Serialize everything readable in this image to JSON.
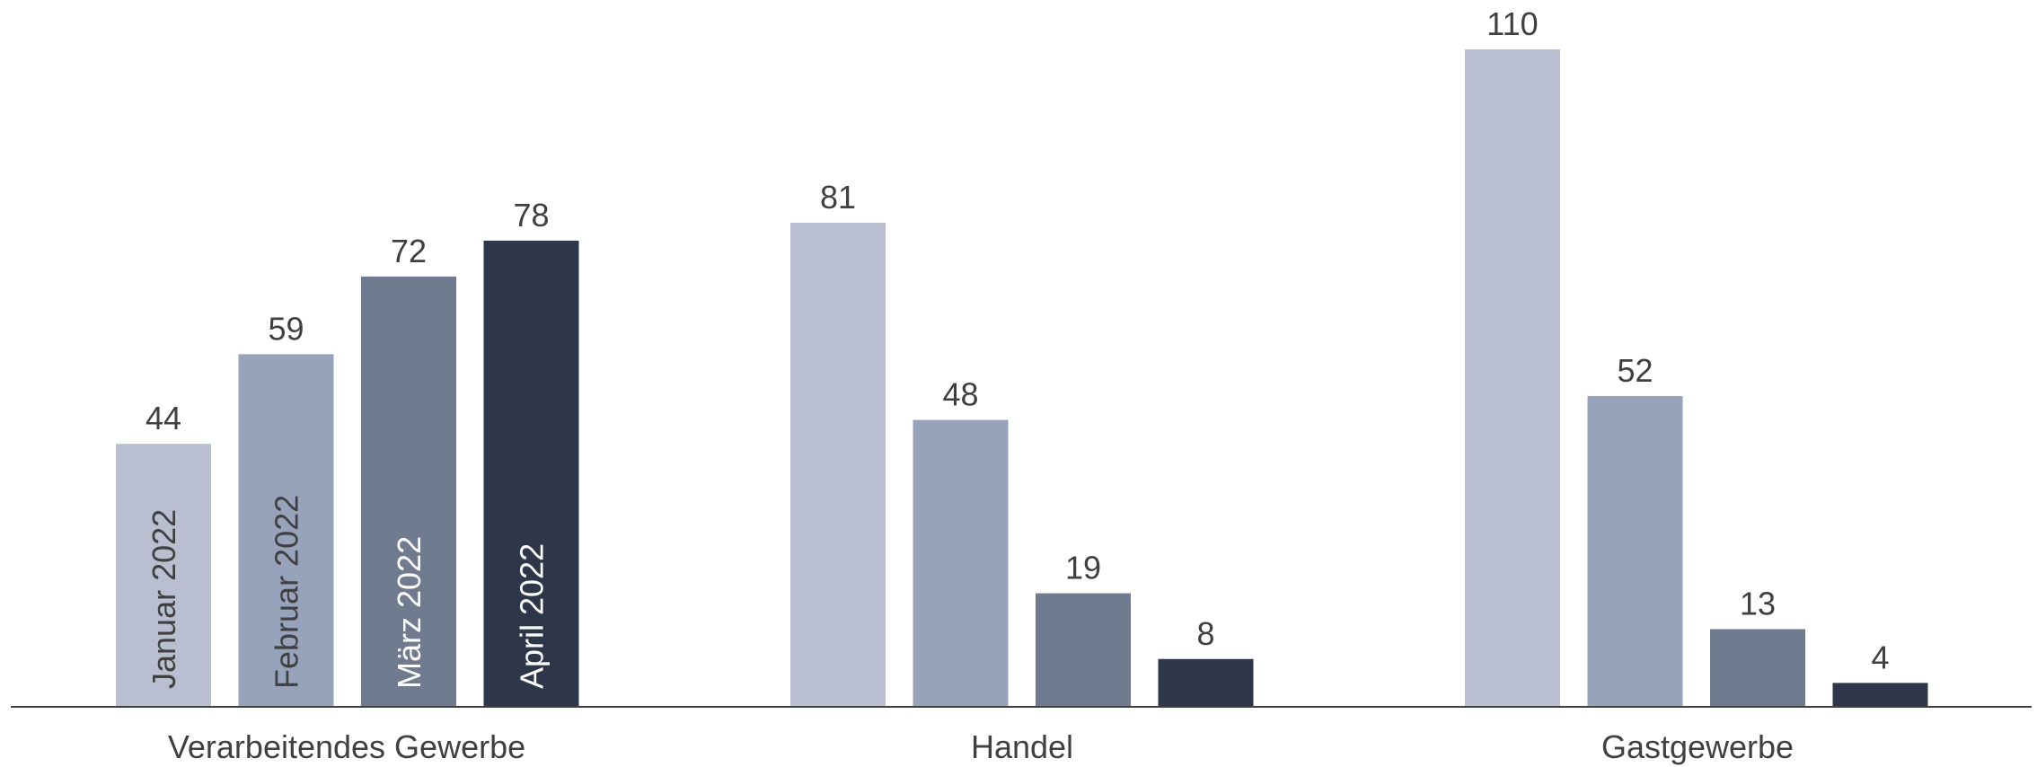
{
  "chart_data": {
    "type": "bar",
    "categories": [
      "Verarbeitendes Gewerbe",
      "Handel",
      "Gastgewerbe"
    ],
    "series": [
      {
        "name": "Januar 2022",
        "values": [
          44,
          81,
          110
        ],
        "color": "#b9bfd1",
        "label_color": "#404040"
      },
      {
        "name": "Februar 2022",
        "values": [
          59,
          48,
          52
        ],
        "color": "#97a2bb",
        "label_color": "#404040"
      },
      {
        "name": "März 2022",
        "values": [
          72,
          19,
          13
        ],
        "color": "#717b8f",
        "label_color": "#ffffff"
      },
      {
        "name": "April 2022",
        "values": [
          78,
          8,
          4
        ],
        "color": "#2e3649",
        "label_color": "#ffffff"
      }
    ],
    "ylim": [
      0,
      115
    ],
    "grid": false,
    "legend": "inside bars of first category",
    "title": "",
    "xlabel": "",
    "ylabel": ""
  }
}
